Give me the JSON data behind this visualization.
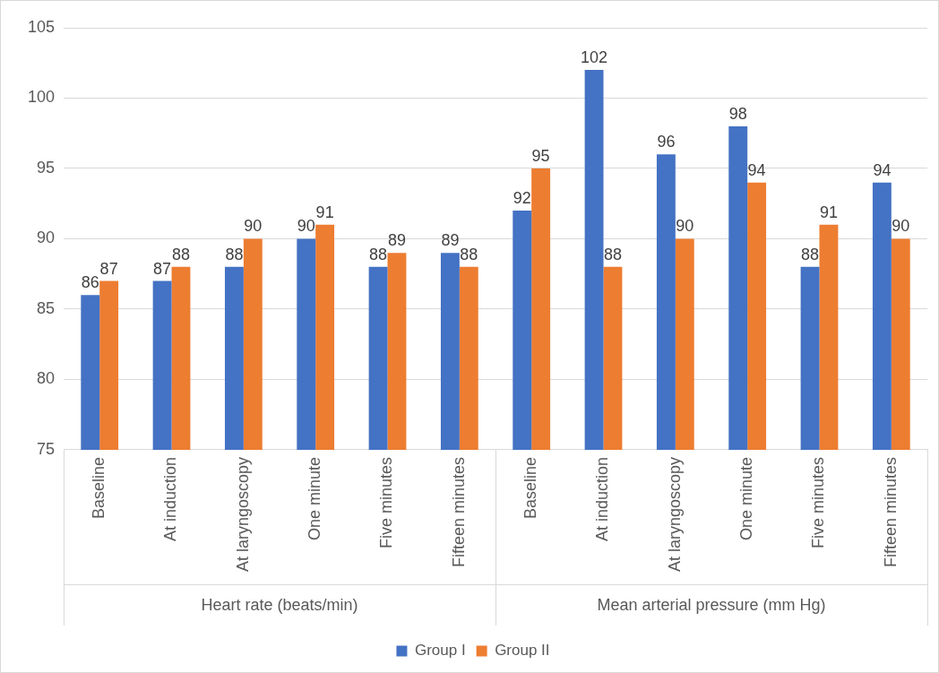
{
  "chart_data": {
    "type": "bar",
    "categories": [
      "Baseline",
      "At induction",
      "At laryngoscopy",
      "One minute",
      "Five minutes",
      "Fifteen minutes",
      "Baseline",
      "At induction",
      "At laryngoscopy",
      "One minute",
      "Five minutes",
      "Fifteen minutes"
    ],
    "series": [
      {
        "name": "Group I",
        "color": "#4472c4",
        "values": [
          86,
          87,
          88,
          90,
          88,
          89,
          92,
          102,
          96,
          98,
          88,
          94
        ]
      },
      {
        "name": "Group II",
        "color": "#ed7d31",
        "values": [
          87,
          88,
          90,
          91,
          89,
          88,
          95,
          88,
          90,
          94,
          91,
          90
        ]
      }
    ],
    "ylim": [
      75,
      105
    ],
    "yticks": [
      75,
      80,
      85,
      90,
      95,
      100,
      105
    ],
    "grid": "y",
    "legend": "bottom",
    "data_labels": true,
    "annotations": [
      "Heart rate (beats/min)",
      "Mean arterial pressure (mm Hg)"
    ]
  }
}
